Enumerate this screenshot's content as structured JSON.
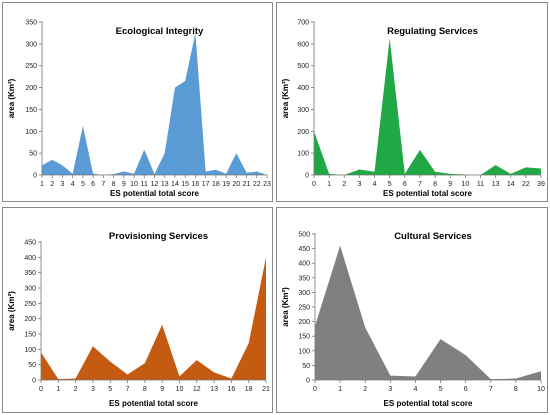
{
  "chart_data": [
    {
      "type": "area",
      "title": "Ecological Integrity",
      "xlabel": "ES potential  total score",
      "ylabel": "area (Km²)",
      "ylim": [
        0,
        350
      ],
      "yticks": [
        "0",
        "50",
        "100",
        "150",
        "200",
        "250",
        "300",
        "350"
      ],
      "categories": [
        "1",
        "2",
        "3",
        "4",
        "5",
        "6",
        "7",
        "8",
        "9",
        "10",
        "11",
        "12",
        "13",
        "14",
        "15",
        "16",
        "17",
        "18",
        "19",
        "20",
        "21",
        "22",
        "23"
      ],
      "values": [
        22,
        35,
        22,
        3,
        112,
        3,
        0,
        2,
        8,
        3,
        58,
        2,
        50,
        200,
        215,
        325,
        8,
        12,
        3,
        50,
        5,
        8,
        0
      ],
      "color": "#5b9bd5",
      "grid": false
    },
    {
      "type": "area",
      "title": "Regulating Services",
      "xlabel": "ES potential total score",
      "ylabel": "area (Km²)",
      "ylim": [
        0,
        700
      ],
      "yticks": [
        "0",
        "100",
        "200",
        "300",
        "400",
        "500",
        "600",
        "700"
      ],
      "categories": [
        "0",
        "1",
        "2",
        "3",
        "4",
        "5",
        "6",
        "7",
        "8",
        "9",
        "10",
        "11",
        "13",
        "14",
        "22",
        "39"
      ],
      "values": [
        200,
        5,
        0,
        25,
        15,
        625,
        5,
        115,
        15,
        5,
        2,
        0,
        45,
        5,
        35,
        30
      ],
      "color": "#1fa843",
      "grid": false
    },
    {
      "type": "area",
      "title": "Provisioning Services",
      "xlabel": "ES potential total score",
      "ylabel": "area (Km²)",
      "ylim": [
        0,
        450
      ],
      "yticks": [
        "0",
        "50",
        "100",
        "150",
        "200",
        "250",
        "300",
        "350",
        "400",
        "450"
      ],
      "categories": [
        "0",
        "1",
        "2",
        "3",
        "5",
        "7",
        "8",
        "9",
        "10",
        "12",
        "13",
        "16",
        "18",
        "21"
      ],
      "values": [
        90,
        3,
        5,
        110,
        60,
        18,
        55,
        180,
        12,
        65,
        25,
        5,
        120,
        400
      ],
      "color": "#c55a11",
      "grid": false
    },
    {
      "type": "area",
      "title": "Cultural Services",
      "xlabel": "ES potential total score",
      "ylabel": "area (Km²)",
      "ylim": [
        0,
        500
      ],
      "yticks": [
        "0",
        "50",
        "100",
        "150",
        "200",
        "250",
        "300",
        "350",
        "400",
        "450",
        "500"
      ],
      "categories": [
        "0",
        "1",
        "2",
        "3",
        "4",
        "5",
        "6",
        "7",
        "8",
        "10"
      ],
      "values": [
        185,
        460,
        180,
        15,
        12,
        140,
        85,
        3,
        5,
        30
      ],
      "color": "#808080",
      "grid": false
    }
  ]
}
